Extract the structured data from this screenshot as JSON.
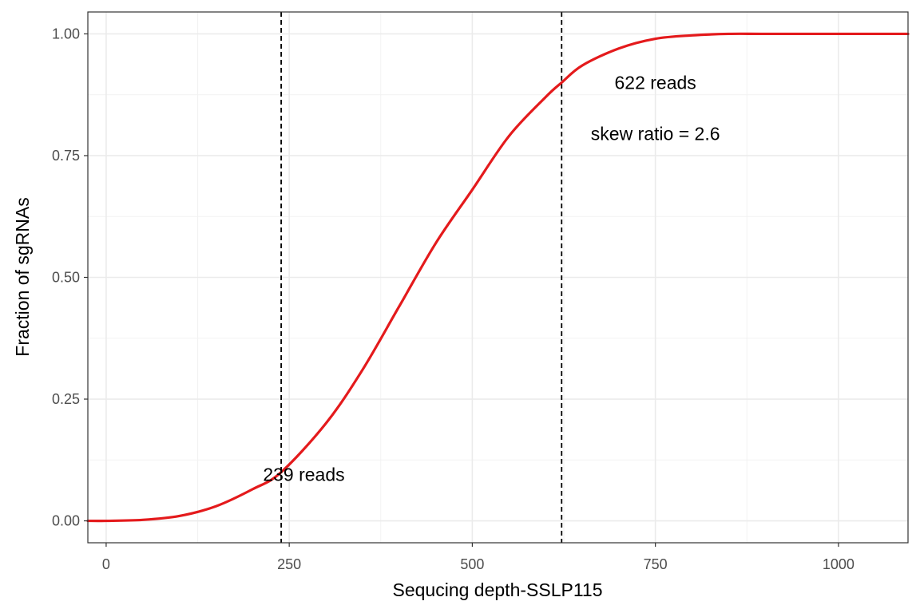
{
  "chart_data": {
    "type": "line",
    "title": "",
    "xlabel": "Sequcing depth-SSLP115",
    "ylabel": "Fraction of sgRNAs",
    "xlim": [
      -25,
      1095
    ],
    "ylim": [
      -0.045,
      1.045
    ],
    "x_ticks": [
      0,
      250,
      500,
      750,
      1000
    ],
    "x_tick_labels": [
      "0",
      "250",
      "500",
      "750",
      "1000"
    ],
    "y_ticks": [
      0,
      0.25,
      0.5,
      0.75,
      1
    ],
    "y_tick_labels": [
      "0.00",
      "0.25",
      "0.50",
      "0.75",
      "1.00"
    ],
    "grid": true,
    "legend": "none",
    "series": [
      {
        "color": "#e41a1c",
        "x": [
          -25,
          0,
          50,
          100,
          150,
          200,
          239,
          300,
          350,
          400,
          450,
          500,
          550,
          600,
          622,
          650,
          700,
          750,
          800,
          850,
          900,
          1000,
          1095
        ],
        "y": [
          0,
          0,
          0.002,
          0.01,
          0.03,
          0.065,
          0.1,
          0.2,
          0.31,
          0.44,
          0.57,
          0.68,
          0.79,
          0.87,
          0.9,
          0.935,
          0.97,
          0.99,
          0.997,
          1,
          1,
          1,
          1
        ]
      }
    ],
    "vlines": [
      {
        "x": 239,
        "style": "dashed",
        "color": "#000000"
      },
      {
        "x": 622,
        "style": "dashed",
        "color": "#000000"
      }
    ],
    "annotations": [
      {
        "text": "239 reads",
        "x": 270,
        "y": 0.095
      },
      {
        "text": "622 reads",
        "x": 750,
        "y": 0.9
      },
      {
        "text": "skew ratio = 2.6",
        "x": 750,
        "y": 0.795
      }
    ]
  }
}
